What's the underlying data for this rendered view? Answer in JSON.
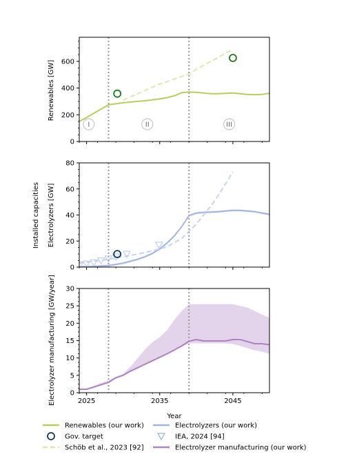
{
  "figure": {
    "shared_ylabel": "Installed capacities",
    "xlabel": "Year"
  },
  "colors": {
    "renewables": "#b5cf5b",
    "renewables_ref": "#dde8b0",
    "electrolyzers": "#a3b6e0",
    "electrolyzers_ref": "#c6d3ee",
    "manufacturing": "#ad82c2",
    "manufacturing_band": "#e3d4ec",
    "gov_target": "#0d3d5e",
    "gov_target_renew": "#1a7a1a",
    "phase_line": "#999999"
  },
  "legend": {
    "items": [
      {
        "label": "Renewables (our work)",
        "icon": "solid-line",
        "color": "#b5cf5b"
      },
      {
        "label": "Electrolyzers (our work)",
        "icon": "solid-line",
        "color": "#a3b6e0"
      },
      {
        "label": "Gov. target",
        "icon": "open-circle",
        "color": "#0d3d5e"
      },
      {
        "label": "IEA, 2024 [94]",
        "icon": "open-triangle-down",
        "color": "#a3b6e0"
      },
      {
        "label": "Schöb et al., 2023 [92]",
        "icon": "dashed-line",
        "color": "#dde8b0"
      },
      {
        "label": "Electrolyzer manufacturing (our work)",
        "icon": "solid-line",
        "color": "#ad82c2"
      }
    ]
  },
  "chart_data": [
    {
      "type": "line",
      "ylabel": "Renewables [GW]",
      "ylim": [
        0,
        780
      ],
      "yticks": [
        0,
        200,
        400,
        600
      ],
      "xlim": [
        2024,
        2050
      ],
      "xticks": [
        2025,
        2035,
        2045
      ],
      "phase_lines": [
        2028,
        2039
      ],
      "phases": [
        {
          "label": "I",
          "x": 2025.3
        },
        {
          "label": "II",
          "x": 2033.3
        },
        {
          "label": "III",
          "x": 2044.5
        }
      ],
      "series": [
        {
          "name": "Renewables (our work)",
          "style": "solid",
          "x": [
            2024,
            2025,
            2026,
            2027,
            2028,
            2029,
            2030,
            2031,
            2032,
            2033,
            2034,
            2035,
            2036,
            2037,
            2038,
            2039,
            2040,
            2041,
            2042,
            2043,
            2044,
            2045,
            2046,
            2047,
            2048,
            2049,
            2050
          ],
          "y": [
            150,
            180,
            212,
            243,
            275,
            282,
            290,
            295,
            300,
            305,
            312,
            318,
            328,
            342,
            365,
            370,
            368,
            362,
            358,
            358,
            360,
            363,
            358,
            352,
            350,
            353,
            360
          ]
        },
        {
          "name": "Schöb et al., 2023 [92]",
          "style": "dashed",
          "x": [
            2030,
            2035,
            2039,
            2040,
            2045
          ],
          "y": [
            310,
            430,
            505,
            540,
            690
          ]
        }
      ],
      "markers": [
        {
          "name": "Gov. target",
          "shape": "circle",
          "x": 2029.2,
          "y": 358
        },
        {
          "name": "Gov. target",
          "shape": "circle",
          "x": 2045,
          "y": 625
        }
      ]
    },
    {
      "type": "line",
      "ylabel": "Electrolyzers [GW]",
      "ylim": [
        0,
        80
      ],
      "yticks": [
        0,
        20,
        40,
        60,
        80
      ],
      "xlim": [
        2024,
        2050
      ],
      "xticks": [
        2025,
        2035,
        2045
      ],
      "phase_lines": [
        2028,
        2039
      ],
      "series": [
        {
          "name": "Electrolyzers (our work)",
          "style": "solid",
          "x": [
            2024,
            2025,
            2026,
            2027,
            2028,
            2029,
            2030,
            2031,
            2032,
            2033,
            2034,
            2035,
            2036,
            2037,
            2038,
            2039,
            2040,
            2041,
            2042,
            2043,
            2044,
            2045,
            2046,
            2047,
            2048,
            2049,
            2050
          ],
          "y": [
            0.2,
            0.3,
            0.5,
            0.8,
            1.2,
            2.0,
            3.0,
            4.5,
            6.0,
            8.0,
            10.5,
            14.0,
            18.5,
            24.0,
            31.0,
            39.5,
            41.5,
            42.0,
            42.3,
            42.5,
            43.0,
            43.5,
            43.5,
            43.0,
            42.5,
            41.5,
            40.5
          ]
        },
        {
          "name": "Schöb et al., 2023 [92]",
          "style": "dashed",
          "x": [
            2024,
            2026,
            2028,
            2030,
            2032,
            2034,
            2036,
            2038,
            2040,
            2041,
            2042,
            2043,
            2044,
            2045
          ],
          "y": [
            3,
            4.5,
            6,
            8,
            10,
            12.5,
            15.5,
            22,
            33,
            40,
            47,
            55,
            64,
            73
          ]
        }
      ],
      "markers": [
        {
          "name": "Gov. target",
          "shape": "circle",
          "x": 2029.2,
          "y": 10
        },
        {
          "name": "IEA, 2024 [94]",
          "shape": "triangle-down",
          "x": 2024.1,
          "y": 2
        },
        {
          "name": "IEA, 2024 [94]",
          "shape": "triangle-down",
          "x": 2025,
          "y": 2.5
        },
        {
          "name": "IEA, 2024 [94]",
          "shape": "triangle-down",
          "x": 2026,
          "y": 3.5
        },
        {
          "name": "IEA, 2024 [94]",
          "shape": "triangle-down",
          "x": 2027,
          "y": 5
        },
        {
          "name": "IEA, 2024 [94]",
          "shape": "triangle-down",
          "x": 2028,
          "y": 6.5
        },
        {
          "name": "IEA, 2024 [94]",
          "shape": "triangle-down",
          "x": 2029,
          "y": 8
        },
        {
          "name": "IEA, 2024 [94]",
          "shape": "triangle-down",
          "x": 2030.5,
          "y": 10
        },
        {
          "name": "IEA, 2024 [94]",
          "shape": "triangle-down",
          "x": 2034.9,
          "y": 17
        }
      ]
    },
    {
      "type": "area",
      "ylabel": "Electrolyzer manufacturing [GW/year]",
      "ylim": [
        0,
        30
      ],
      "yticks": [
        0,
        5,
        10,
        15,
        20,
        25,
        30
      ],
      "xlim": [
        2024,
        2050
      ],
      "xticks": [
        2025,
        2035,
        2045
      ],
      "xticklabels": [
        "2025",
        "2035",
        "2045"
      ],
      "xlabel": "Year",
      "phase_lines": [
        2028,
        2039
      ],
      "band": {
        "x": [
          2024,
          2025,
          2026,
          2027,
          2028,
          2029,
          2030,
          2031,
          2032,
          2033,
          2034,
          2035,
          2036,
          2037,
          2038,
          2039,
          2040,
          2041,
          2042,
          2043,
          2044,
          2045,
          2046,
          2047,
          2048,
          2049,
          2050
        ],
        "upper": [
          1.0,
          1.2,
          2.0,
          2.8,
          3.5,
          4.6,
          5.4,
          7.5,
          10.0,
          12.5,
          14.5,
          16.0,
          18.0,
          21.0,
          23.5,
          25.5,
          25.5,
          25.5,
          25.5,
          25.5,
          25.5,
          25.5,
          25.0,
          24.5,
          23.5,
          22.5,
          21.5
        ],
        "lower": [
          1.0,
          1.0,
          1.5,
          2.2,
          3.0,
          4.2,
          5.0,
          6.3,
          7.3,
          8.2,
          9.2,
          10.2,
          11.2,
          12.2,
          13.2,
          14.2,
          14.2,
          14.2,
          14.2,
          14.2,
          14.2,
          14.0,
          13.5,
          12.8,
          12.2,
          11.8,
          11.2
        ]
      },
      "series": [
        {
          "name": "Electrolyzer manufacturing (our work)",
          "style": "solid",
          "x": [
            2024,
            2025,
            2026,
            2027,
            2028,
            2029,
            2030,
            2031,
            2032,
            2033,
            2034,
            2035,
            2036,
            2037,
            2038,
            2039,
            2040,
            2041,
            2042,
            2043,
            2044,
            2045,
            2046,
            2047,
            2048,
            2049,
            2050
          ],
          "y": [
            1.0,
            1.0,
            1.6,
            2.3,
            3.0,
            4.3,
            5.0,
            6.2,
            7.2,
            8.2,
            9.2,
            10.2,
            11.2,
            12.3,
            13.5,
            14.8,
            15.3,
            14.9,
            14.9,
            14.9,
            14.9,
            15.3,
            15.3,
            14.7,
            14.1,
            14.1,
            13.8
          ]
        }
      ]
    }
  ]
}
